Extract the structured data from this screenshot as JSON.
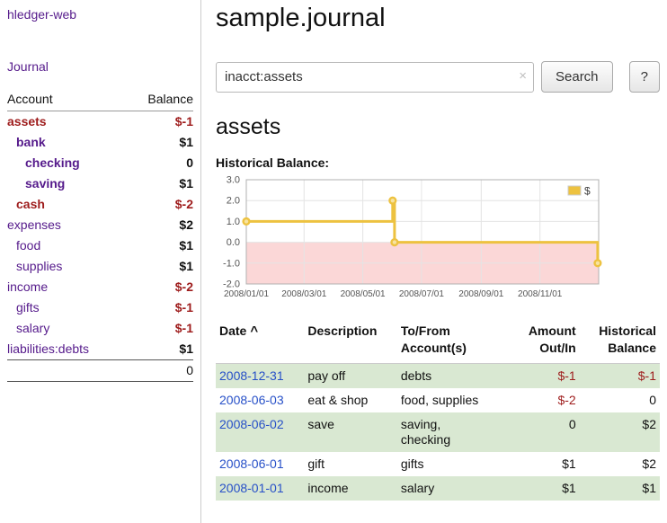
{
  "app": {
    "title": "hledger-web"
  },
  "sidebar": {
    "journal_link": "Journal",
    "headers": {
      "account": "Account",
      "balance": "Balance"
    },
    "rows": [
      {
        "account": "assets",
        "balance": "$-1",
        "indent": 0,
        "bold": true,
        "account_negative": true,
        "balance_negative": true
      },
      {
        "account": "bank",
        "balance": "$1",
        "indent": 1,
        "bold": true,
        "account_negative": false,
        "balance_negative": false
      },
      {
        "account": "checking",
        "balance": "0",
        "indent": 2,
        "bold": true,
        "account_negative": false,
        "balance_negative": false
      },
      {
        "account": "saving",
        "balance": "$1",
        "indent": 2,
        "bold": true,
        "account_negative": false,
        "balance_negative": false
      },
      {
        "account": "cash",
        "balance": "$-2",
        "indent": 1,
        "bold": true,
        "account_negative": true,
        "balance_negative": true
      },
      {
        "account": "expenses",
        "balance": "$2",
        "indent": 0,
        "bold": false,
        "account_negative": false,
        "balance_negative": false
      },
      {
        "account": "food",
        "balance": "$1",
        "indent": 1,
        "bold": false,
        "account_negative": false,
        "balance_negative": false
      },
      {
        "account": "supplies",
        "balance": "$1",
        "indent": 1,
        "bold": false,
        "account_negative": false,
        "balance_negative": false
      },
      {
        "account": "income",
        "balance": "$-2",
        "indent": 0,
        "bold": false,
        "account_negative": false,
        "balance_negative": true
      },
      {
        "account": "gifts",
        "balance": "$-1",
        "indent": 1,
        "bold": false,
        "account_negative": false,
        "balance_negative": true
      },
      {
        "account": "salary",
        "balance": "$-1",
        "indent": 1,
        "bold": false,
        "account_negative": false,
        "balance_negative": true
      },
      {
        "account": "liabilities:debts",
        "balance": "$1",
        "indent": 0,
        "bold": false,
        "account_negative": false,
        "balance_negative": false
      }
    ],
    "total": "0"
  },
  "main": {
    "title": "sample.journal",
    "search": {
      "value": "inacct:assets",
      "clear_icon": "×",
      "button": "Search",
      "help_button": "?"
    },
    "account_heading": "assets",
    "chart_label": "Historical Balance:",
    "register": {
      "headers": [
        {
          "label": "Date",
          "sort_icon": "^",
          "align": "left"
        },
        {
          "label": "Description",
          "align": "left"
        },
        {
          "label": "To/From\nAccount(s)",
          "align": "left"
        },
        {
          "label": "Amount\nOut/In",
          "align": "right"
        },
        {
          "label": "Historical\nBalance",
          "align": "right"
        }
      ],
      "rows": [
        {
          "date": "2008-12-31",
          "description": "pay off",
          "accounts": "debts",
          "amount": "$-1",
          "amount_negative": true,
          "balance": "$-1",
          "balance_negative": true
        },
        {
          "date": "2008-06-03",
          "description": "eat & shop",
          "accounts": "food, supplies",
          "amount": "$-2",
          "amount_negative": true,
          "balance": "0",
          "balance_negative": false
        },
        {
          "date": "2008-06-02",
          "description": "save",
          "accounts": "saving,\nchecking",
          "amount": "0",
          "amount_negative": false,
          "balance": "$2",
          "balance_negative": false
        },
        {
          "date": "2008-06-01",
          "description": "gift",
          "accounts": "gifts",
          "amount": "$1",
          "amount_negative": false,
          "balance": "$2",
          "balance_negative": false
        },
        {
          "date": "2008-01-01",
          "description": "income",
          "accounts": "salary",
          "amount": "$1",
          "amount_negative": false,
          "balance": "$1",
          "balance_negative": false
        }
      ]
    }
  },
  "chart_data": {
    "type": "line",
    "step": true,
    "title": "Historical Balance:",
    "series": [
      {
        "name": "$",
        "color": "#edc240",
        "points": [
          {
            "x": "2008-01-01",
            "y": 1
          },
          {
            "x": "2008-06-01",
            "y": 2
          },
          {
            "x": "2008-06-03",
            "y": 0
          },
          {
            "x": "2008-12-31",
            "y": -1
          }
        ]
      }
    ],
    "x_ticks": [
      "2008/01/01",
      "2008/03/01",
      "2008/05/01",
      "2008/07/01",
      "2008/09/01",
      "2008/11/01"
    ],
    "y_ticks": [
      3.0,
      2.0,
      1.0,
      0.0,
      -1.0,
      -2.0
    ],
    "xlim": [
      "2008-01-01",
      "2009-01-01"
    ],
    "ylim": [
      -2,
      3
    ],
    "grid": true,
    "negative_region_color": "#fbd7d7",
    "legend": {
      "label": "$",
      "position": "top-right"
    }
  }
}
